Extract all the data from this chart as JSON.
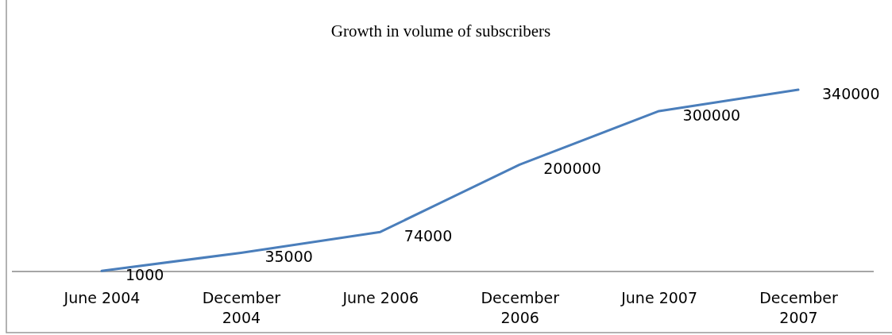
{
  "chart_data": {
    "type": "line",
    "title": "Growth in volume of subscribers",
    "categories": [
      "June 2004",
      "December 2004",
      "June 2006",
      "December 2006",
      "June 2007",
      "December 2007"
    ],
    "series": [
      {
        "color": "#4a7ebb",
        "values": [
          1000,
          35000,
          74000,
          200000,
          300000,
          340000
        ]
      }
    ],
    "data_labels": true,
    "marker": "none",
    "line_style": "solid"
  }
}
